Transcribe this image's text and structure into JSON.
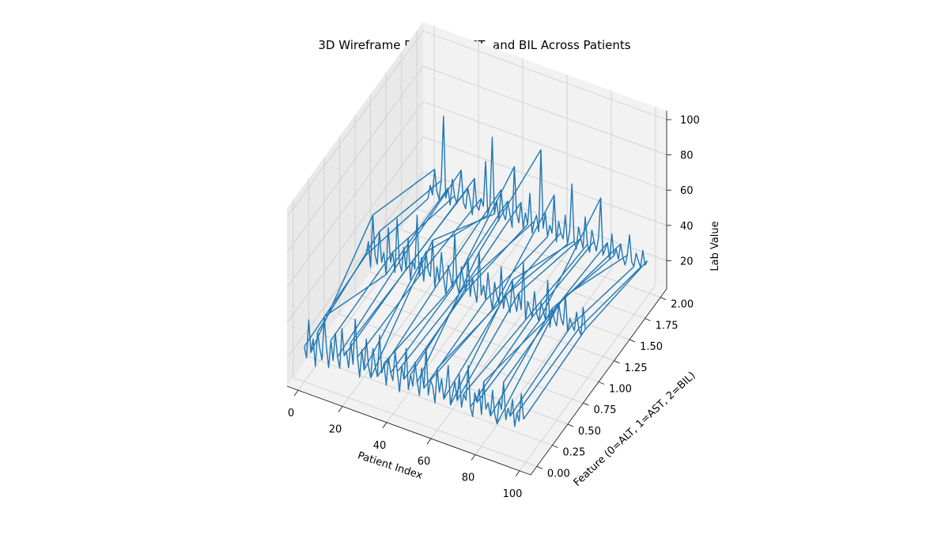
{
  "chart_data": {
    "type": "line",
    "subtype": "3d-wireframe",
    "title": "3D Wireframe Plot: ALT, AST, and BIL Across Patients",
    "xlabel": "Patient Index",
    "ylabel": "Feature (0=ALT, 1=AST, 2=BIL)",
    "zlabel": "Lab Value",
    "xlim": [
      -5,
      105
    ],
    "ylim": [
      -0.1,
      2.1
    ],
    "zlim": [
      4,
      105
    ],
    "x_ticks": [
      "0",
      "20",
      "40",
      "60",
      "80",
      "100"
    ],
    "y_ticks": [
      "0.00",
      "0.25",
      "0.50",
      "0.75",
      "1.00",
      "1.25",
      "1.50",
      "1.75",
      "2.00"
    ],
    "z_ticks": [
      "20",
      "40",
      "60",
      "80",
      "100"
    ],
    "grid": true,
    "line_color": "#1f77b4",
    "feature_levels": [
      0,
      1,
      2
    ],
    "series": [
      {
        "feature": 0,
        "values": [
          24,
          18,
          40,
          22,
          30,
          15,
          35,
          26,
          20,
          45,
          28,
          17,
          33,
          22,
          38,
          25,
          19,
          42,
          27,
          30,
          21,
          36,
          24,
          50,
          29,
          18,
          34,
          23,
          41,
          26,
          20,
          37,
          28,
          22,
          46,
          25,
          31,
          19,
          35,
          27,
          23,
          40,
          29,
          18,
          33,
          26,
          44,
          21,
          30,
          24,
          38,
          27,
          20,
          36,
          25,
          48,
          22,
          31,
          28,
          19,
          39,
          26,
          34,
          23,
          30,
          43,
          21,
          28,
          35,
          25,
          40,
          22,
          30,
          27,
          47,
          24,
          19,
          33,
          28,
          36,
          22,
          41,
          26,
          30,
          23,
          38,
          25,
          20,
          34,
          29,
          45,
          24,
          31,
          27,
          37,
          22,
          30,
          26,
          42,
          28
        ]
      },
      {
        "feature": 1,
        "values": [
          28,
          36,
          22,
          52,
          30,
          25,
          44,
          27,
          33,
          21,
          48,
          29,
          35,
          24,
          55,
          31,
          26,
          40,
          28,
          46,
          23,
          34,
          30,
          61,
          27,
          38,
          25,
          42,
          32,
          29,
          50,
          24,
          36,
          28,
          45,
          31,
          22,
          39,
          34,
          27,
          58,
          30,
          25,
          41,
          33,
          28,
          47,
          26,
          37,
          30,
          24,
          53,
          29,
          35,
          27,
          43,
          31,
          23,
          39,
          32,
          28,
          49,
          26,
          34,
          30,
          25,
          44,
          33,
          27,
          38,
          29,
          56,
          24,
          35,
          31,
          27,
          42,
          30,
          26,
          37,
          33,
          28,
          51,
          25,
          36,
          30,
          27,
          40,
          32,
          29,
          46,
          26,
          34,
          31,
          28,
          39,
          30,
          27,
          43,
          31
        ]
      },
      {
        "feature": 2,
        "values": [
          12,
          20,
          15,
          30,
          18,
          14,
          25,
          62,
          16,
          22,
          13,
          28,
          19,
          15,
          24,
          35,
          17,
          14,
          26,
          20,
          12,
          33,
          18,
          16,
          23,
          19,
          45,
          15,
          21,
          60,
          17,
          25,
          14,
          32,
          19,
          16,
          27,
          20,
          13,
          48,
          22,
          17,
          29,
          15,
          24,
          18,
          36,
          14,
          21,
          25,
          16,
          63,
          19,
          28,
          15,
          22,
          18,
          40,
          14,
          26,
          20,
          17,
          31,
          15,
          23,
          50,
          18,
          14,
          27,
          21,
          16,
          34,
          19,
          15,
          28,
          22,
          17,
          25,
          48,
          16,
          20,
          24,
          15,
          30,
          18,
          22,
          17,
          26,
          19,
          15,
          21,
          33,
          18,
          16,
          24,
          20,
          17,
          27,
          19,
          22
        ]
      }
    ]
  }
}
